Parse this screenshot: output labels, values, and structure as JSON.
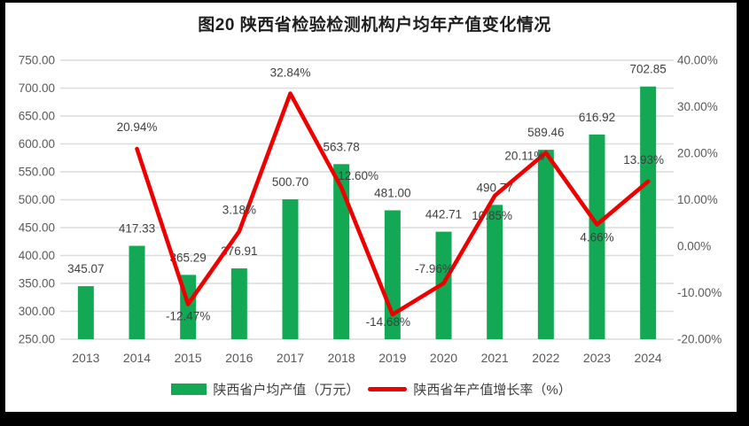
{
  "title": "图20  陕西省检验检测机构户均年产值变化情况",
  "colors": {
    "bar_green": "#12A854",
    "line_red": "#EE0000",
    "grid": "#DCDCDC",
    "tick_text": "#595959",
    "label_text": "#3F3F3F",
    "title_text": "#1F1F1F",
    "frame_border": "#000000",
    "background": "#FFFFFF"
  },
  "chart_data": {
    "type": "bar",
    "subtype": "combo-bar-line-dual-axis",
    "title": "图20  陕西省检验检测机构户均年产值变化情况",
    "categories": [
      "2013",
      "2014",
      "2015",
      "2016",
      "2017",
      "2018",
      "2019",
      "2020",
      "2021",
      "2022",
      "2023",
      "2024"
    ],
    "series": [
      {
        "name": "陕西省户均产值（万元）",
        "type": "bar",
        "axis": "left",
        "color": "#12A854",
        "values": [
          345.07,
          417.33,
          365.29,
          376.91,
          500.7,
          563.78,
          481.0,
          442.71,
          490.77,
          589.46,
          616.92,
          702.85
        ],
        "labels": [
          "345.07",
          "417.33",
          "365.29",
          "376.91",
          "500.70",
          "563.78",
          "481.00",
          "442.71",
          "490.77",
          "589.46",
          "616.92",
          "702.85"
        ]
      },
      {
        "name": "陕西省年产值增长率（%）",
        "type": "line",
        "axis": "right",
        "color": "#EE0000",
        "start_category_index": 1,
        "values": [
          20.94,
          -12.47,
          3.18,
          32.84,
          12.6,
          -14.68,
          -7.96,
          10.85,
          20.11,
          4.66,
          13.93
        ],
        "labels": [
          "20.94%",
          "-12.47%",
          "3.18%",
          "32.84%",
          "12.60%",
          "-14.68%",
          "-7.96%",
          "10.85%",
          "20.11%",
          "4.66%",
          "13.93%"
        ],
        "label_offsets": [
          [
            0,
            -20
          ],
          [
            0,
            18
          ],
          [
            0,
            -20
          ],
          [
            0,
            -19
          ],
          [
            19,
            -9
          ],
          [
            -5,
            13
          ],
          [
            -11,
            -12
          ],
          [
            -3,
            27
          ],
          [
            -24,
            8
          ],
          [
            0,
            19
          ],
          [
            -5,
            -20
          ]
        ]
      }
    ],
    "left_axis": {
      "min": 250,
      "max": 750,
      "step": 50,
      "tick_labels": [
        "750.00",
        "700.00",
        "650.00",
        "600.00",
        "550.00",
        "500.00",
        "450.00",
        "400.00",
        "350.00",
        "300.00",
        "250.00"
      ]
    },
    "right_axis": {
      "min": -20,
      "max": 40,
      "step": 10,
      "tick_labels": [
        "40.00%",
        "30.00%",
        "20.00%",
        "10.00%",
        "0.00%",
        "-10.00%",
        "-20.00%"
      ]
    },
    "grid": true,
    "legend_position": "bottom"
  },
  "legend": {
    "bar_label": "陕西省户均产值（万元）",
    "line_label": "陕西省年产值增长率（%）"
  }
}
